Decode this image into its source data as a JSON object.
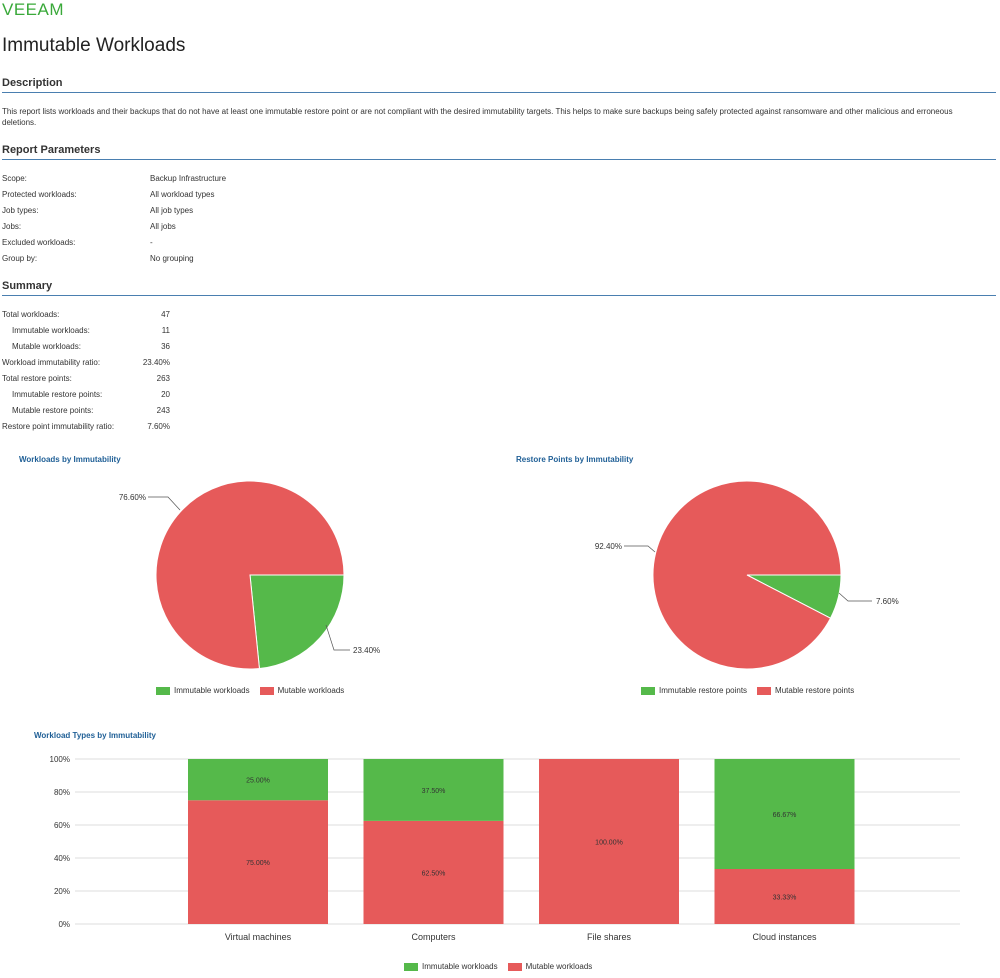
{
  "brand": {
    "logo_text": "VEEAM",
    "color": "#3aa93a"
  },
  "page_title": "Immutable Workloads",
  "sections": {
    "description": "Description",
    "report_parameters": "Report Parameters",
    "summary": "Summary"
  },
  "description_text": "This report lists workloads and their backups that do not have at least one immutable restore point or are not compliant with the desired immutability targets. This helps to make sure backups being safely protected against ransomware and other malicious and erroneous deletions.",
  "parameters": [
    {
      "label": "Scope:",
      "value": "Backup Infrastructure"
    },
    {
      "label": "Protected workloads:",
      "value": "All workload types"
    },
    {
      "label": "Job types:",
      "value": "All job types"
    },
    {
      "label": "Jobs:",
      "value": "All jobs"
    },
    {
      "label": "Excluded workloads:",
      "value": "-"
    },
    {
      "label": "Group by:",
      "value": "No grouping"
    }
  ],
  "summary": [
    {
      "label": "Total workloads:",
      "value": "47",
      "indent": false
    },
    {
      "label": "Immutable workloads:",
      "value": "11",
      "indent": true
    },
    {
      "label": "Mutable workloads:",
      "value": "36",
      "indent": true
    },
    {
      "label": "Workload immutability ratio:",
      "value": "23.40%",
      "indent": false
    },
    {
      "label": "Total restore points:",
      "value": "263",
      "indent": false
    },
    {
      "label": "Immutable restore points:",
      "value": "20",
      "indent": true
    },
    {
      "label": "Mutable restore points:",
      "value": "243",
      "indent": true
    },
    {
      "label": "Restore point immutability ratio:",
      "value": "7.60%",
      "indent": false
    }
  ],
  "colors": {
    "immutable": "#55b94a",
    "mutable": "#e65a5a",
    "accent": "#1f5f96",
    "rule": "#4a7fb0"
  },
  "chart_data": [
    {
      "type": "pie",
      "title": "Workloads by Immutability",
      "slices": [
        {
          "name": "Immutable workloads",
          "value": 23.4,
          "label": "23.40%"
        },
        {
          "name": "Mutable workloads",
          "value": 76.6,
          "label": "76.60%"
        }
      ],
      "legend_position": "bottom"
    },
    {
      "type": "pie",
      "title": "Restore Points by Immutability",
      "slices": [
        {
          "name": "Immutable restore points",
          "value": 7.6,
          "label": "7.60%"
        },
        {
          "name": "Mutable restore points",
          "value": 92.4,
          "label": "92.40%"
        }
      ],
      "legend_position": "bottom"
    },
    {
      "type": "bar",
      "stacked": true,
      "title": "Workload Types by Immutability",
      "categories": [
        "Virtual machines",
        "Computers",
        "File shares",
        "Cloud instances"
      ],
      "series": [
        {
          "name": "Mutable workloads",
          "values": [
            75.0,
            62.5,
            100.0,
            33.33
          ],
          "labels": [
            "75.00%",
            "62.50%",
            "100.00%",
            "33.33%"
          ]
        },
        {
          "name": "Immutable workloads",
          "values": [
            25.0,
            37.5,
            0,
            66.67
          ],
          "labels": [
            "25.00%",
            "37.50%",
            "",
            "66.67%"
          ]
        }
      ],
      "yticks": [
        "0%",
        "20%",
        "40%",
        "60%",
        "80%",
        "100%"
      ],
      "ylim": [
        0,
        100
      ],
      "grid": true,
      "legend": [
        "Immutable workloads",
        "Mutable workloads"
      ],
      "legend_position": "bottom"
    }
  ]
}
